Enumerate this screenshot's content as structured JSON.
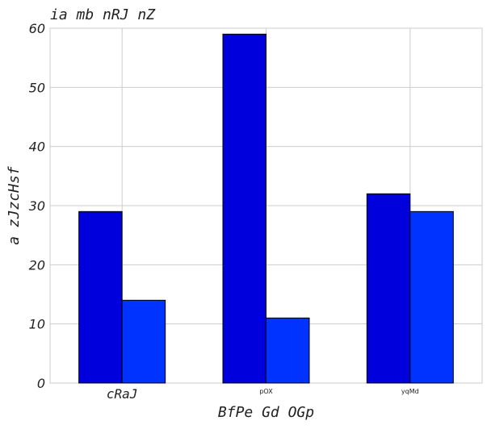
{
  "chart_data": {
    "type": "bar",
    "title": "ia mb nRJ nZ",
    "xlabel": "BfPe Gd OGp",
    "ylabel": "a zJzcHsf",
    "categories": [
      "cRaJ",
      "pOX",
      "yqMd"
    ],
    "series": [
      {
        "values": [
          29,
          59,
          32
        ],
        "color": "#0000dd"
      },
      {
        "values": [
          14,
          11,
          29
        ],
        "color": "#0033ff"
      }
    ],
    "ylim": [
      0,
      60
    ],
    "yticks": [
      0,
      10,
      20,
      30,
      40,
      50,
      60
    ],
    "grid": true,
    "legend": "none"
  }
}
